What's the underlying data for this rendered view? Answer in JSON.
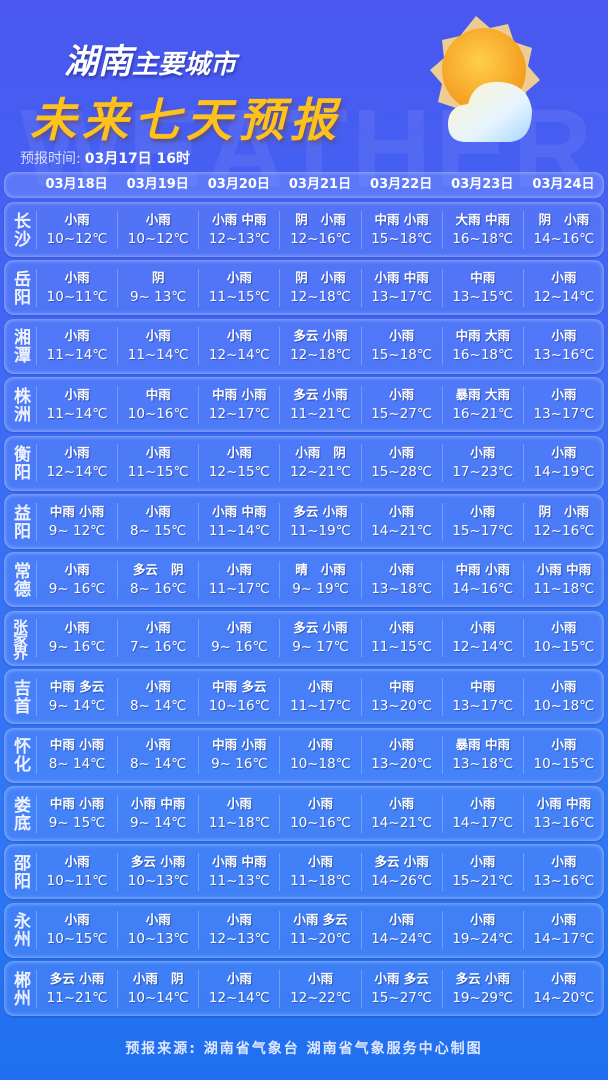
{
  "watermark": "WEATHER",
  "title_line1_a": "湖南",
  "title_line1_b": "主要城市",
  "title_line2": "未来七天预报",
  "forecast_time_label": "预报时间:",
  "forecast_time_value": "03月17日 16时",
  "icon": "sun-behind-cloud-icon",
  "dates": [
    "03月18日",
    "03月19日",
    "03月20日",
    "03月21日",
    "03月22日",
    "03月23日",
    "03月24日"
  ],
  "cities": [
    {
      "name": "长沙",
      "days": [
        [
          "小雨",
          "10~12℃"
        ],
        [
          "小雨",
          "10~12℃"
        ],
        [
          "小雨 中雨",
          "12~13℃"
        ],
        [
          "阴   小雨",
          "12~16℃"
        ],
        [
          "中雨 小雨",
          "15~18℃"
        ],
        [
          "大雨 中雨",
          "16~18℃"
        ],
        [
          "阴   小雨",
          "14~16℃"
        ]
      ]
    },
    {
      "name": "岳阳",
      "days": [
        [
          "小雨",
          "10~11℃"
        ],
        [
          "阴",
          "9~ 13℃"
        ],
        [
          "小雨",
          "11~15℃"
        ],
        [
          "阴   小雨",
          "12~18℃"
        ],
        [
          "小雨 中雨",
          "13~17℃"
        ],
        [
          "中雨",
          "13~15℃"
        ],
        [
          "小雨",
          "12~14℃"
        ]
      ]
    },
    {
      "name": "湘潭",
      "days": [
        [
          "小雨",
          "11~14℃"
        ],
        [
          "小雨",
          "11~14℃"
        ],
        [
          "小雨",
          "12~14℃"
        ],
        [
          "多云 小雨",
          "12~18℃"
        ],
        [
          "小雨",
          "15~18℃"
        ],
        [
          "中雨 大雨",
          "16~18℃"
        ],
        [
          "小雨",
          "13~16℃"
        ]
      ]
    },
    {
      "name": "株洲",
      "days": [
        [
          "小雨",
          "11~14℃"
        ],
        [
          "中雨",
          "10~16℃"
        ],
        [
          "中雨 小雨",
          "12~17℃"
        ],
        [
          "多云 小雨",
          "11~21℃"
        ],
        [
          "小雨",
          "15~27℃"
        ],
        [
          "暴雨 大雨",
          "16~21℃"
        ],
        [
          "小雨",
          "13~17℃"
        ]
      ]
    },
    {
      "name": "衡阳",
      "days": [
        [
          "小雨",
          "12~14℃"
        ],
        [
          "小雨",
          "11~15℃"
        ],
        [
          "小雨",
          "12~15℃"
        ],
        [
          "小雨   阴",
          "12~21℃"
        ],
        [
          "小雨",
          "15~28℃"
        ],
        [
          "小雨",
          "17~23℃"
        ],
        [
          "小雨",
          "14~19℃"
        ]
      ]
    },
    {
      "name": "益阳",
      "days": [
        [
          "中雨 小雨",
          "9~ 12℃"
        ],
        [
          "小雨",
          "8~ 15℃"
        ],
        [
          "小雨 中雨",
          "11~14℃"
        ],
        [
          "多云 小雨",
          "11~19℃"
        ],
        [
          "小雨",
          "14~21℃"
        ],
        [
          "小雨",
          "15~17℃"
        ],
        [
          "阴   小雨",
          "12~16℃"
        ]
      ]
    },
    {
      "name": "常德",
      "days": [
        [
          "小雨",
          "9~ 16℃"
        ],
        [
          "多云   阴",
          "8~ 16℃"
        ],
        [
          "小雨",
          "11~17℃"
        ],
        [
          "晴   小雨",
          "9~ 19℃"
        ],
        [
          "小雨",
          "13~18℃"
        ],
        [
          "中雨 小雨",
          "14~16℃"
        ],
        [
          "小雨 中雨",
          "11~18℃"
        ]
      ]
    },
    {
      "name": "张家界",
      "days": [
        [
          "小雨",
          "9~ 16℃"
        ],
        [
          "小雨",
          "7~ 16℃"
        ],
        [
          "小雨",
          "9~ 16℃"
        ],
        [
          "多云 小雨",
          "9~ 17℃"
        ],
        [
          "小雨",
          "11~15℃"
        ],
        [
          "小雨",
          "12~14℃"
        ],
        [
          "小雨",
          "10~15℃"
        ]
      ]
    },
    {
      "name": "吉首",
      "days": [
        [
          "中雨 多云",
          "9~ 14℃"
        ],
        [
          "小雨",
          "8~ 14℃"
        ],
        [
          "中雨 多云",
          "10~16℃"
        ],
        [
          "小雨",
          "11~17℃"
        ],
        [
          "中雨",
          "13~20℃"
        ],
        [
          "中雨",
          "13~17℃"
        ],
        [
          "小雨",
          "10~18℃"
        ]
      ]
    },
    {
      "name": "怀化",
      "days": [
        [
          "中雨 小雨",
          "8~ 14℃"
        ],
        [
          "小雨",
          "8~ 14℃"
        ],
        [
          "中雨 小雨",
          "9~ 16℃"
        ],
        [
          "小雨",
          "10~18℃"
        ],
        [
          "小雨",
          "13~20℃"
        ],
        [
          "暴雨 中雨",
          "13~18℃"
        ],
        [
          "小雨",
          "10~15℃"
        ]
      ]
    },
    {
      "name": "娄底",
      "days": [
        [
          "中雨 小雨",
          "9~ 15℃"
        ],
        [
          "小雨 中雨",
          "9~ 14℃"
        ],
        [
          "小雨",
          "11~18℃"
        ],
        [
          "小雨",
          "10~16℃"
        ],
        [
          "小雨",
          "14~21℃"
        ],
        [
          "小雨",
          "14~17℃"
        ],
        [
          "小雨 中雨",
          "13~16℃"
        ]
      ]
    },
    {
      "name": "邵阳",
      "days": [
        [
          "小雨",
          "10~11℃"
        ],
        [
          "多云 小雨",
          "10~13℃"
        ],
        [
          "小雨 中雨",
          "11~13℃"
        ],
        [
          "小雨",
          "11~18℃"
        ],
        [
          "多云 小雨",
          "14~26℃"
        ],
        [
          "小雨",
          "15~21℃"
        ],
        [
          "小雨",
          "13~16℃"
        ]
      ]
    },
    {
      "name": "永州",
      "days": [
        [
          "小雨",
          "10~15℃"
        ],
        [
          "小雨",
          "10~13℃"
        ],
        [
          "小雨",
          "12~13℃"
        ],
        [
          "小雨 多云",
          "11~20℃"
        ],
        [
          "小雨",
          "14~24℃"
        ],
        [
          "小雨",
          "19~24℃"
        ],
        [
          "小雨",
          "14~17℃"
        ]
      ]
    },
    {
      "name": "郴州",
      "days": [
        [
          "多云 小雨",
          "11~21℃"
        ],
        [
          "小雨   阴",
          "10~14℃"
        ],
        [
          "小雨",
          "12~14℃"
        ],
        [
          "小雨",
          "12~22℃"
        ],
        [
          "小雨 多云",
          "15~27℃"
        ],
        [
          "多云 小雨",
          "19~29℃"
        ],
        [
          "小雨",
          "14~20℃"
        ]
      ]
    }
  ],
  "footer": "预报来源: 湖南省气象台  湖南省气象服务中心制图",
  "colors": {
    "title_yellow": "#ffc21a",
    "background": "#3d6cf5"
  }
}
